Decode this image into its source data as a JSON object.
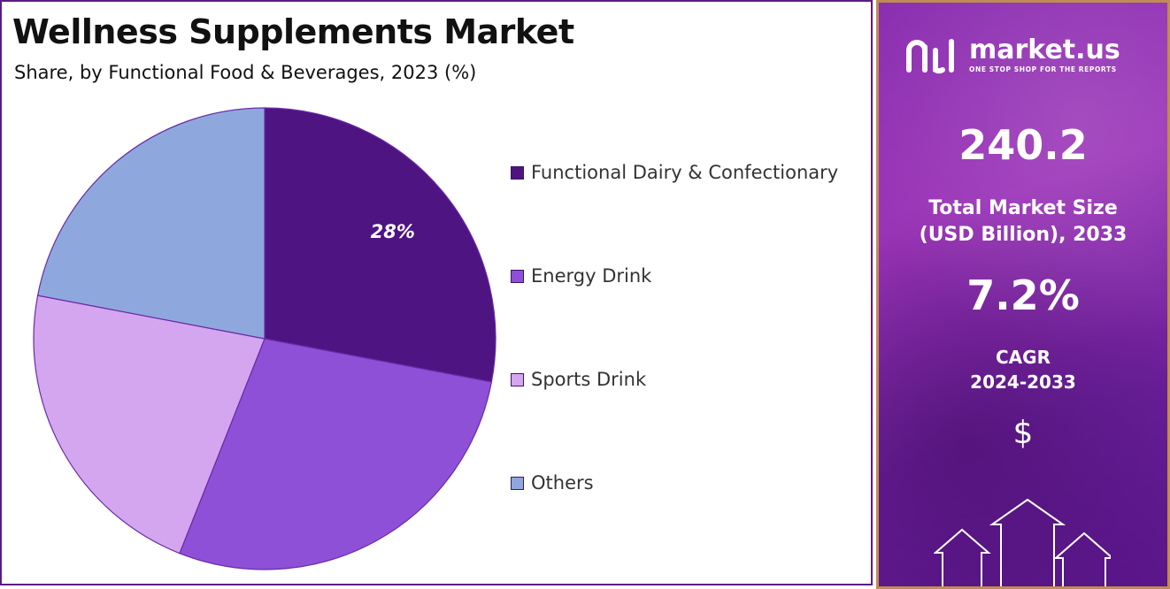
{
  "chart_data": {
    "type": "pie",
    "title": "Wellness Supplements Market",
    "subtitle": "Share, by Functional Food & Beverages, 2023 (%)",
    "slices": [
      {
        "label": "Functional Dairy & Confectionary",
        "value": 28,
        "color": "#4e1482",
        "data_label": "28%"
      },
      {
        "label": "Energy Drink",
        "value": 28,
        "color": "#8e50d6",
        "data_label": ""
      },
      {
        "label": "Sports Drink",
        "value": 22,
        "color": "#d3a6ef",
        "data_label": ""
      },
      {
        "label": "Others",
        "value": 22,
        "color": "#8ea8de",
        "data_label": ""
      }
    ],
    "legend_position": "right"
  },
  "sidebar": {
    "brand_name": "market.us",
    "brand_tagline": "ONE STOP SHOP FOR THE REPORTS",
    "market_size_value": "240.2",
    "market_size_label_1": "Total Market Size",
    "market_size_label_2": "(USD Billion), 2033",
    "cagr_value": "7.2%",
    "cagr_label_1": "CAGR",
    "cagr_label_2": "2024-2033",
    "currency_icon": "dollar-icon",
    "currency_symbol": "$",
    "colors": {
      "accent": "#8a2fb0",
      "border": "#c08b55"
    }
  }
}
